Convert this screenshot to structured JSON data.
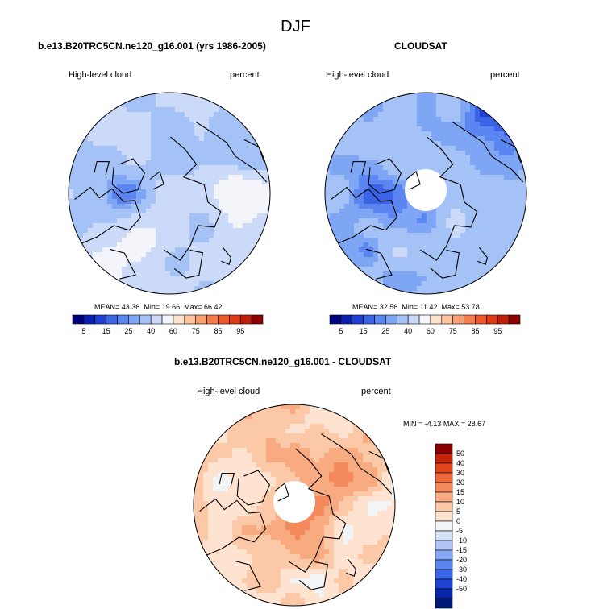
{
  "main_title": "DJF",
  "colors": {
    "abs_scale": [
      "#00007d",
      "#0820b0",
      "#1f3fd2",
      "#3a63e6",
      "#5b85f0",
      "#7ea6f4",
      "#a4c2f6",
      "#cadaf8",
      "#f3f5fa",
      "#fde2cc",
      "#fbc3a0",
      "#f8a073",
      "#f57c4c",
      "#ee5a2c",
      "#dc3a16",
      "#bf1f0a",
      "#8c0000"
    ],
    "diff_scale": [
      "#001a7a",
      "#0525ad",
      "#1c43d2",
      "#3a65e8",
      "#5a86f0",
      "#86a8f4",
      "#afc6f6",
      "#d6e3f8",
      "#f3f4f6",
      "#fde3d0",
      "#fbc9a8",
      "#f8aa80",
      "#f48a5c",
      "#ee6a3c",
      "#e2441d",
      "#c2240c",
      "#8a0000"
    ]
  },
  "panels": [
    {
      "title": "b.e13.B20TRC5CN.ne120_g16.001 (yrs 1986-2005)",
      "variable": "High-level cloud",
      "units": "percent",
      "stats": {
        "mean_label": "MEAN=",
        "mean": "43.36",
        "min_label": "Min=",
        "min": "19.66",
        "max_label": "Max=",
        "max": "66.42"
      },
      "has_hole": false
    },
    {
      "title": "CLOUDSAT",
      "variable": "High-level cloud",
      "units": "percent",
      "stats": {
        "mean_label": "MEAN=",
        "mean": "32.56",
        "min_label": "Min=",
        "min": "11.42",
        "max_label": "Max=",
        "max": "53.78"
      },
      "has_hole": true
    },
    {
      "title": "b.e13.B20TRC5CN.ne120_g16.001 - CLOUDSAT",
      "variable": "High-level cloud",
      "units": "percent",
      "stats": {
        "min_label": "MIN =",
        "min": "-4.13",
        "max_label": "MAX =",
        "max": "28.67"
      },
      "has_hole": true
    }
  ],
  "abs_colorbar_labels": [
    "5",
    "15",
    "25",
    "40",
    "60",
    "75",
    "85",
    "95"
  ],
  "diff_colorbar_labels": [
    "50",
    "40",
    "30",
    "20",
    "15",
    "10",
    "5",
    "0",
    "-5",
    "-10",
    "-15",
    "-20",
    "-30",
    "-40",
    "-50"
  ]
}
